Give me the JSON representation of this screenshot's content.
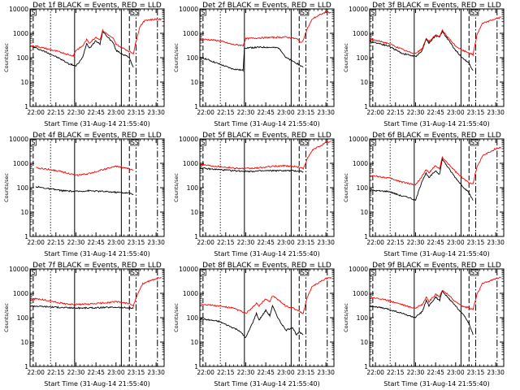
{
  "figure": {
    "x_ticks": [
      "22:00",
      "22:15",
      "22:30",
      "22:45",
      "23:00",
      "23:15",
      "23:30"
    ],
    "y_ticks": [
      "1",
      "10",
      "100",
      "1000",
      "10000"
    ],
    "xlabel": "Start Time (31-Aug-14 21:55:40)",
    "ylabel": "Counts/sec",
    "marker_labels": [
      "S",
      "SS"
    ],
    "colors": {
      "events": "#000000",
      "lld": "#ff0000"
    }
  },
  "chart_data": [
    {
      "type": "line",
      "title": "Det 1f BLACK = Events, RED = LLD",
      "yscale": "log",
      "ylim": [
        1,
        10000
      ],
      "xlim": [
        "21:55:40",
        "23:36:00"
      ],
      "series": [
        {
          "name": "Events",
          "color": "black",
          "x": [
            "21:56",
            "22:00",
            "22:10",
            "22:20",
            "22:25",
            "22:28",
            "22:30",
            "22:35",
            "22:38",
            "22:40",
            "22:45",
            "22:48",
            "22:50",
            "22:55",
            "22:58",
            "23:00",
            "23:05",
            "23:10",
            "23:13"
          ],
          "y": [
            300,
            250,
            150,
            80,
            55,
            50,
            45,
            100,
            400,
            250,
            500,
            350,
            1200,
            600,
            400,
            200,
            140,
            100,
            40
          ]
        },
        {
          "name": "LLD",
          "color": "red",
          "x": [
            "21:56",
            "22:00",
            "22:10",
            "22:20",
            "22:25",
            "22:28",
            "22:30",
            "22:35",
            "22:38",
            "22:40",
            "22:45",
            "22:48",
            "22:50",
            "22:55",
            "22:58",
            "23:00",
            "23:05",
            "23:10",
            "23:13",
            "23:16",
            "23:18",
            "23:22",
            "23:30",
            "23:34"
          ],
          "y": [
            300,
            300,
            220,
            160,
            130,
            120,
            200,
            300,
            550,
            400,
            700,
            550,
            1300,
            800,
            600,
            350,
            250,
            180,
            150,
            800,
            2000,
            3500,
            3800,
            3700
          ]
        }
      ]
    },
    {
      "type": "line",
      "title": "Det 2f BLACK = Events, RED = LLD",
      "yscale": "log",
      "ylim": [
        1,
        10000
      ],
      "xlim": [
        "21:55:40",
        "23:36:00"
      ],
      "series": [
        {
          "name": "Events",
          "color": "black",
          "x": [
            "21:56",
            "22:00",
            "22:10",
            "22:20",
            "22:28",
            "22:29",
            "22:35",
            "22:45",
            "22:50",
            "22:55",
            "22:58",
            "23:00",
            "23:08",
            "23:13"
          ],
          "y": [
            100,
            90,
            55,
            35,
            30,
            250,
            260,
            270,
            260,
            250,
            150,
            100,
            60,
            40
          ]
        },
        {
          "name": "LLD",
          "color": "red",
          "x": [
            "21:56",
            "22:00",
            "22:10",
            "22:20",
            "22:28",
            "22:30",
            "22:40",
            "22:50",
            "23:00",
            "23:08",
            "23:12",
            "23:16",
            "23:20",
            "23:30",
            "23:34"
          ],
          "y": [
            550,
            560,
            500,
            350,
            320,
            600,
            650,
            680,
            700,
            600,
            400,
            1500,
            4000,
            7500,
            7000
          ]
        }
      ]
    },
    {
      "type": "line",
      "title": "Det 3f BLACK = Events, RED = LLD",
      "yscale": "log",
      "ylim": [
        1,
        10000
      ],
      "xlim": [
        "21:55:40",
        "23:36:00"
      ],
      "series": [
        {
          "name": "Events",
          "color": "black",
          "x": [
            "21:56",
            "22:00",
            "22:10",
            "22:20",
            "22:25",
            "22:30",
            "22:35",
            "22:38",
            "22:40",
            "22:45",
            "22:48",
            "22:50",
            "22:55",
            "23:00",
            "23:05",
            "23:10",
            "23:13"
          ],
          "y": [
            450,
            420,
            300,
            150,
            130,
            110,
            200,
            600,
            400,
            800,
            700,
            1200,
            500,
            200,
            100,
            60,
            30
          ]
        },
        {
          "name": "LLD",
          "color": "red",
          "x": [
            "21:56",
            "22:00",
            "22:10",
            "22:20",
            "22:25",
            "22:30",
            "22:35",
            "22:38",
            "22:40",
            "22:45",
            "22:48",
            "22:50",
            "22:55",
            "23:00",
            "23:05",
            "23:10",
            "23:13",
            "23:16",
            "23:20",
            "23:30",
            "23:34"
          ],
          "y": [
            550,
            520,
            380,
            220,
            170,
            150,
            230,
            650,
            450,
            850,
            750,
            1300,
            600,
            300,
            200,
            160,
            130,
            900,
            2500,
            4000,
            4500
          ]
        }
      ]
    },
    {
      "type": "line",
      "title": "Det 4f BLACK = Events, RED = LLD",
      "yscale": "log",
      "ylim": [
        1,
        10000
      ],
      "xlim": [
        "21:55:40",
        "23:36:00"
      ],
      "series": [
        {
          "name": "Events",
          "color": "black",
          "x": [
            "22:00",
            "22:10",
            "22:20",
            "22:30",
            "22:40",
            "22:50",
            "23:00",
            "23:10",
            "23:13"
          ],
          "y": [
            110,
            90,
            75,
            70,
            75,
            70,
            65,
            60,
            55
          ]
        },
        {
          "name": "LLD",
          "color": "red",
          "x": [
            "22:00",
            "22:10",
            "22:20",
            "22:30",
            "22:40",
            "22:50",
            "23:00",
            "23:10",
            "23:13"
          ],
          "y": [
            650,
            560,
            450,
            320,
            380,
            550,
            750,
            600,
            500
          ]
        }
      ]
    },
    {
      "type": "line",
      "title": "Det 5f BLACK = Events, RED = LLD",
      "yscale": "log",
      "ylim": [
        1,
        10000
      ],
      "xlim": [
        "21:55:40",
        "23:36:00"
      ],
      "series": [
        {
          "name": "Events",
          "color": "black",
          "x": [
            "21:56",
            "22:00",
            "22:10",
            "22:20",
            "22:30",
            "22:40",
            "22:50",
            "23:00",
            "23:10",
            "23:13"
          ],
          "y": [
            650,
            600,
            550,
            500,
            470,
            480,
            500,
            500,
            480,
            450
          ]
        },
        {
          "name": "LLD",
          "color": "red",
          "x": [
            "21:56",
            "22:00",
            "22:10",
            "22:20",
            "22:30",
            "22:40",
            "22:50",
            "23:00",
            "23:10",
            "23:13",
            "23:16",
            "23:20",
            "23:30",
            "23:34"
          ],
          "y": [
            900,
            850,
            750,
            650,
            600,
            650,
            750,
            800,
            700,
            600,
            1500,
            3500,
            7000,
            8000
          ]
        }
      ]
    },
    {
      "type": "line",
      "title": "Det 6f BLACK = Events, RED = LLD",
      "yscale": "log",
      "ylim": [
        1,
        10000
      ],
      "xlim": [
        "21:55:40",
        "23:36:00"
      ],
      "series": [
        {
          "name": "Events",
          "color": "black",
          "x": [
            "21:56",
            "22:00",
            "22:10",
            "22:20",
            "22:25",
            "22:30",
            "22:35",
            "22:38",
            "22:40",
            "22:45",
            "22:48",
            "22:50",
            "22:55",
            "23:00",
            "23:05",
            "23:10",
            "23:13"
          ],
          "y": [
            80,
            75,
            70,
            45,
            40,
            30,
            200,
            400,
            250,
            500,
            350,
            1500,
            600,
            250,
            120,
            60,
            30
          ]
        },
        {
          "name": "LLD",
          "color": "red",
          "x": [
            "21:56",
            "22:00",
            "22:10",
            "22:20",
            "22:25",
            "22:30",
            "22:35",
            "22:38",
            "22:40",
            "22:45",
            "22:48",
            "22:50",
            "22:55",
            "23:00",
            "23:05",
            "23:10",
            "23:13",
            "23:16",
            "23:20",
            "23:30",
            "23:34"
          ],
          "y": [
            300,
            300,
            250,
            170,
            150,
            130,
            300,
            550,
            400,
            800,
            600,
            1700,
            900,
            450,
            250,
            160,
            150,
            700,
            2000,
            4000,
            4500
          ]
        }
      ]
    },
    {
      "type": "line",
      "title": "Det 7f BLACK = Events, RED = LLD",
      "yscale": "log",
      "ylim": [
        1,
        10000
      ],
      "xlim": [
        "21:55:40",
        "23:36:00"
      ],
      "series": [
        {
          "name": "Events",
          "color": "black",
          "x": [
            "21:56",
            "22:00",
            "22:10",
            "22:20",
            "22:30",
            "22:40",
            "22:50",
            "23:00",
            "23:10",
            "23:13"
          ],
          "y": [
            300,
            300,
            280,
            260,
            250,
            250,
            260,
            270,
            250,
            240
          ]
        },
        {
          "name": "LLD",
          "color": "red",
          "x": [
            "21:56",
            "22:00",
            "22:10",
            "22:20",
            "22:30",
            "22:40",
            "22:50",
            "23:00",
            "23:10",
            "23:13",
            "23:16",
            "23:20",
            "23:30",
            "23:34"
          ],
          "y": [
            550,
            600,
            500,
            380,
            350,
            360,
            400,
            450,
            380,
            300,
            900,
            2500,
            4000,
            4500
          ]
        }
      ]
    },
    {
      "type": "line",
      "title": "Det 8f BLACK = Events, RED = LLD",
      "yscale": "log",
      "ylim": [
        1,
        10000
      ],
      "xlim": [
        "21:55:40",
        "23:36:00"
      ],
      "series": [
        {
          "name": "Events",
          "color": "black",
          "x": [
            "21:56",
            "22:00",
            "22:10",
            "22:20",
            "22:25",
            "22:30",
            "22:35",
            "22:38",
            "22:40",
            "22:45",
            "22:48",
            "22:50",
            "22:55",
            "23:00",
            "23:05",
            "23:08",
            "23:10",
            "23:13"
          ],
          "y": [
            90,
            85,
            70,
            40,
            30,
            15,
            60,
            150,
            80,
            200,
            120,
            300,
            80,
            30,
            40,
            20,
            25,
            20
          ]
        },
        {
          "name": "LLD",
          "color": "red",
          "x": [
            "21:56",
            "22:00",
            "22:10",
            "22:20",
            "22:25",
            "22:30",
            "22:35",
            "22:38",
            "22:40",
            "22:45",
            "22:48",
            "22:50",
            "22:55",
            "23:00",
            "23:05",
            "23:10",
            "23:13",
            "23:16",
            "23:20",
            "23:30",
            "23:34"
          ],
          "y": [
            350,
            350,
            300,
            250,
            200,
            150,
            250,
            400,
            300,
            600,
            450,
            800,
            500,
            300,
            250,
            180,
            150,
            700,
            2000,
            4000,
            4500
          ]
        }
      ]
    },
    {
      "type": "line",
      "title": "Det 9f BLACK = Events, RED = LLD",
      "yscale": "log",
      "ylim": [
        1,
        10000
      ],
      "xlim": [
        "21:55:40",
        "23:36:00"
      ],
      "series": [
        {
          "name": "Events",
          "color": "black",
          "x": [
            "21:56",
            "22:00",
            "22:10",
            "22:20",
            "22:25",
            "22:30",
            "22:35",
            "22:38",
            "22:40",
            "22:45",
            "22:48",
            "22:50",
            "22:55",
            "23:00",
            "23:05",
            "23:10",
            "23:13"
          ],
          "y": [
            300,
            280,
            220,
            150,
            120,
            100,
            180,
            500,
            300,
            700,
            500,
            1200,
            600,
            300,
            150,
            60,
            20
          ]
        },
        {
          "name": "LLD",
          "color": "red",
          "x": [
            "21:56",
            "22:00",
            "22:10",
            "22:20",
            "22:25",
            "22:30",
            "22:35",
            "22:38",
            "22:40",
            "22:45",
            "22:48",
            "22:50",
            "22:55",
            "23:00",
            "23:05",
            "23:10",
            "23:13",
            "23:16",
            "23:20",
            "23:30",
            "23:34"
          ],
          "y": [
            700,
            650,
            500,
            350,
            280,
            250,
            350,
            700,
            450,
            900,
            700,
            1400,
            800,
            450,
            300,
            250,
            220,
            900,
            2500,
            4000,
            4500
          ]
        }
      ]
    }
  ]
}
